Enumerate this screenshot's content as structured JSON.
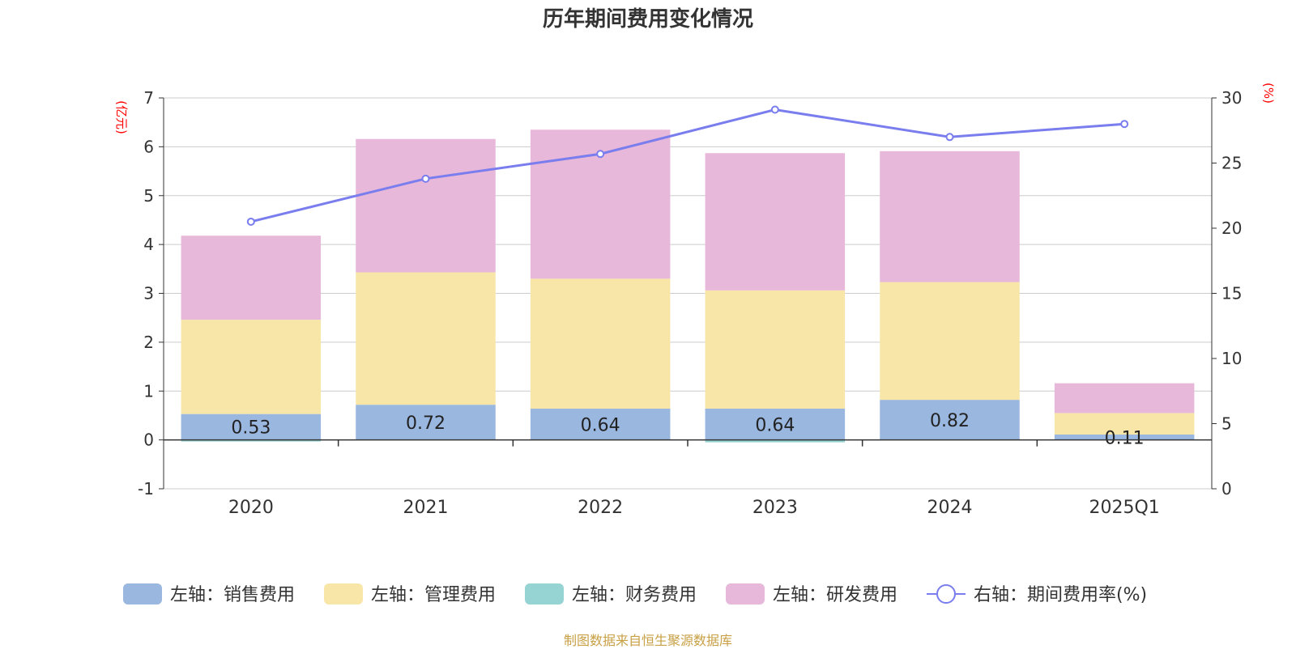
{
  "chart_data": {
    "type": "bar",
    "stacked": true,
    "title": "历年期间费用变化情况",
    "categories": [
      "2020",
      "2021",
      "2022",
      "2023",
      "2024",
      "2025Q1"
    ],
    "y_left": {
      "label": "(亿元)",
      "ylim": [
        -1,
        7
      ],
      "ticks": [
        "-1",
        "0",
        "1",
        "2",
        "3",
        "4",
        "5",
        "6",
        "7"
      ]
    },
    "y_right": {
      "label": "(%)",
      "ylim": [
        0,
        30
      ],
      "ticks": [
        "0",
        "5",
        "10",
        "15",
        "20",
        "25",
        "30"
      ]
    },
    "grid": true,
    "legend_position": "bottom",
    "series": [
      {
        "name": "左轴：销售费用",
        "type": "bar",
        "axis": "left",
        "color": "#9ab7e0",
        "values": [
          0.53,
          0.72,
          0.64,
          0.64,
          0.82,
          0.11
        ],
        "labels": [
          "0.53",
          "0.72",
          "0.64",
          "0.64",
          "0.82",
          "0.11"
        ]
      },
      {
        "name": "左轴：管理费用",
        "type": "bar",
        "axis": "left",
        "color": "#f8e6a8",
        "values": [
          1.93,
          2.71,
          2.66,
          2.42,
          2.41,
          0.44
        ]
      },
      {
        "name": "左轴：财务费用",
        "type": "bar",
        "axis": "left",
        "color": "#96d4d4",
        "values": [
          -0.03,
          0.0,
          0.0,
          -0.05,
          0.0,
          0.0
        ]
      },
      {
        "name": "左轴：研发费用",
        "type": "bar",
        "axis": "left",
        "color": "#e7b8d9",
        "values": [
          1.72,
          2.73,
          3.05,
          2.81,
          2.68,
          0.61
        ]
      },
      {
        "name": "右轴：期间费用率(%)",
        "type": "line",
        "axis": "right",
        "color": "#7a7ded",
        "values": [
          20.5,
          23.8,
          25.7,
          29.1,
          27.0,
          28.0
        ]
      }
    ]
  },
  "footer": "制图数据来自恒生聚源数据库",
  "colors": {
    "axis_label": "#ff0000",
    "text": "#333333",
    "grid": "#cccccc",
    "line_point_fill": "#ffffff",
    "footer": "#c8a046"
  }
}
